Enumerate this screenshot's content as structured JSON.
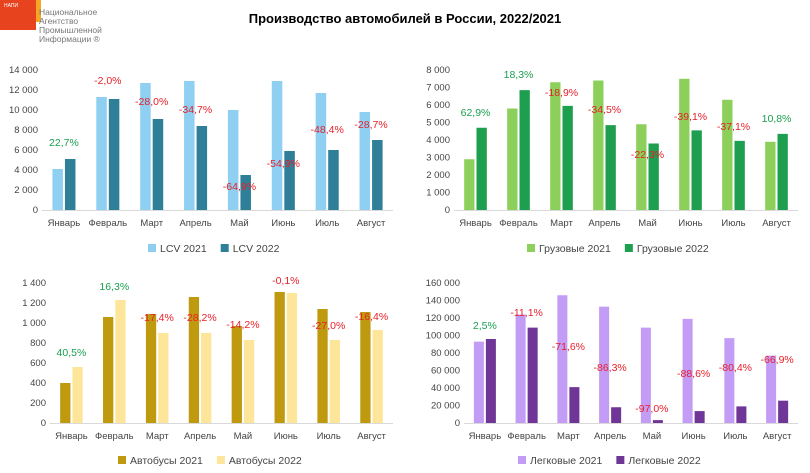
{
  "header": {
    "title": "Производство автомобилей в России, 2022/2021",
    "logo_small": "НАПИ",
    "logo_lines": [
      "Национальное",
      "Агентство",
      "Промышленной",
      "Информации ®"
    ]
  },
  "colors": {
    "positive": "#1a9e4f",
    "negative": "#e8202a"
  },
  "chart_data": [
    {
      "type": "bar",
      "categories": [
        "Январь",
        "Февраль",
        "Март",
        "Апрель",
        "Май",
        "Июнь",
        "Июль",
        "Август"
      ],
      "series": [
        {
          "name": "LCV 2021",
          "color": "#8fd0f2",
          "values": [
            4100,
            11300,
            12700,
            12900,
            10000,
            12900,
            11700,
            9800
          ]
        },
        {
          "name": "LCV 2022",
          "color": "#2f7f99",
          "values": [
            5100,
            11100,
            9100,
            8400,
            3500,
            5900,
            6000,
            7000
          ]
        }
      ],
      "annotations": [
        "22,7%",
        "-2,0%",
        "-28,0%",
        "-34,7%",
        "-64,9%",
        "-54,9%",
        "-48,4%",
        "-28,7%"
      ],
      "yticks": [
        "0",
        "2 000",
        "4 000",
        "6 000",
        "8 000",
        "10 000",
        "12 000",
        "14 000"
      ],
      "ylim": [
        0,
        14000
      ],
      "legend": "bottom"
    },
    {
      "type": "bar",
      "categories": [
        "Январь",
        "Февраль",
        "Март",
        "Апрель",
        "Май",
        "Июнь",
        "Июль",
        "Август"
      ],
      "series": [
        {
          "name": "Грузовые 2021",
          "color": "#8ccf5b",
          "values": [
            2900,
            5800,
            7300,
            7400,
            4900,
            7500,
            6300,
            3900
          ]
        },
        {
          "name": "Грузовые 2022",
          "color": "#1e9e4f",
          "values": [
            4700,
            6850,
            5950,
            4850,
            3800,
            4550,
            3950,
            4350
          ]
        }
      ],
      "annotations": [
        "62,9%",
        "18,3%",
        "-18,9%",
        "-34,5%",
        "-22,3%",
        "-39,1%",
        "-37,1%",
        "10,8%"
      ],
      "yticks": [
        "0",
        "1 000",
        "2 000",
        "3 000",
        "4 000",
        "5 000",
        "6 000",
        "7 000",
        "8 000"
      ],
      "ylim": [
        0,
        8000
      ],
      "legend": "bottom"
    },
    {
      "type": "bar",
      "categories": [
        "Январь",
        "Февраль",
        "Март",
        "Апрель",
        "Май",
        "Июнь",
        "Июль",
        "Август"
      ],
      "series": [
        {
          "name": "Автобусы 2021",
          "color": "#bf9a0f",
          "values": [
            400,
            1060,
            1090,
            1260,
            970,
            1310,
            1140,
            1110
          ]
        },
        {
          "name": "Автобусы 2022",
          "color": "#fde69a",
          "values": [
            560,
            1230,
            900,
            900,
            830,
            1300,
            830,
            930
          ]
        }
      ],
      "annotations": [
        "40,5%",
        "16,3%",
        "-17,4%",
        "-28,2%",
        "-14,2%",
        "-0,1%",
        "-27,0%",
        "-16,4%"
      ],
      "yticks": [
        "0",
        "200",
        "400",
        "600",
        "800",
        "1 000",
        "1 200",
        "1 400"
      ],
      "ylim": [
        0,
        1400
      ],
      "legend": "bottom"
    },
    {
      "type": "bar",
      "categories": [
        "Январь",
        "Февраль",
        "Март",
        "Апрель",
        "Май",
        "Июнь",
        "Июль",
        "Август"
      ],
      "series": [
        {
          "name": "Легковые 2021",
          "color": "#c39cf5",
          "values": [
            93000,
            124000,
            146000,
            133000,
            109000,
            119000,
            97000,
            77000
          ]
        },
        {
          "name": "Легковые 2022",
          "color": "#6f3597",
          "values": [
            96000,
            109000,
            41000,
            18000,
            3300,
            13600,
            19000,
            25500
          ]
        }
      ],
      "annotations": [
        "2,5%",
        "-11,1%",
        "-71,6%",
        "-86,3%",
        "-97,0%",
        "-88,6%",
        "-80,4%",
        "-66,9%"
      ],
      "yticks": [
        "0",
        "20 000",
        "40 000",
        "60 000",
        "80 000",
        "100 000",
        "120 000",
        "140 000",
        "160 000"
      ],
      "ylim": [
        0,
        160000
      ],
      "legend": "bottom"
    }
  ]
}
